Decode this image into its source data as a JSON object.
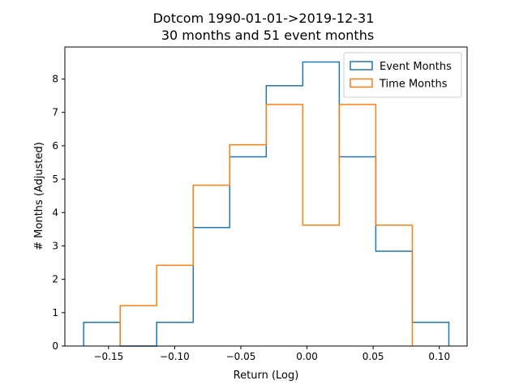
{
  "chart_data": {
    "type": "step-histogram",
    "title": "Dotcom 1990-01-01->2019-12-31",
    "subtitle": "30 months and 51 event months",
    "xlabel": "Return (Log)",
    "ylabel": "# Months (Adjusted)",
    "xlim": [
      -0.183,
      0.121
    ],
    "ylim": [
      0,
      8.96
    ],
    "xticks": [
      -0.15,
      -0.1,
      -0.05,
      0.0,
      0.05,
      0.1
    ],
    "xtick_labels": [
      "−0.15",
      "−0.10",
      "−0.05",
      "0.00",
      "0.05",
      "0.10"
    ],
    "yticks": [
      0,
      1,
      2,
      3,
      4,
      5,
      6,
      7,
      8
    ],
    "ytick_labels": [
      "0",
      "1",
      "2",
      "3",
      "4",
      "5",
      "6",
      "7",
      "8"
    ],
    "grid": false,
    "legend_position": "top-right",
    "series": [
      {
        "name": "Event Months",
        "color": "#1f77b4",
        "bin_edges": [
          -0.1688,
          -0.1412,
          -0.1136,
          -0.086,
          -0.0584,
          -0.0308,
          -0.0032,
          0.0244,
          0.052,
          0.0796,
          0.1072
        ],
        "values": [
          0.71,
          0.0,
          0.71,
          3.55,
          5.67,
          7.8,
          8.51,
          5.67,
          2.84,
          0.71
        ]
      },
      {
        "name": "Time Months",
        "color": "#ff7f0e",
        "bin_edges": [
          -0.1412,
          -0.1136,
          -0.086,
          -0.0584,
          -0.0308,
          -0.0032,
          0.0244,
          0.052,
          0.0796
        ],
        "values": [
          1.21,
          2.42,
          4.82,
          6.03,
          7.24,
          3.62,
          7.24,
          3.62
        ]
      }
    ]
  }
}
